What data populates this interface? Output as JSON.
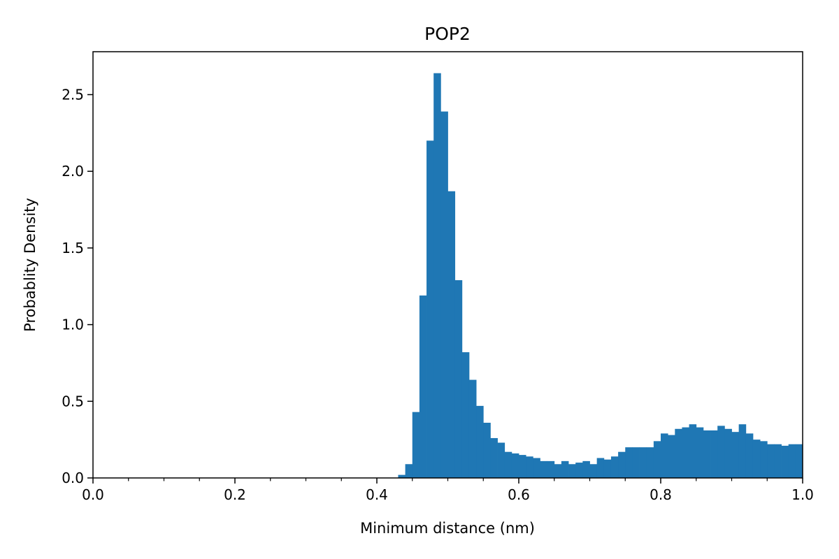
{
  "chart_data": {
    "type": "bar",
    "title": "POP2",
    "xlabel": "Minimum distance (nm)",
    "ylabel": "Probablity Density",
    "xlim": [
      0.0,
      1.0
    ],
    "ylim": [
      0.0,
      2.78
    ],
    "grid": false,
    "bar_color": "#1f77b4",
    "x_ticks": [
      0.0,
      0.2,
      0.4,
      0.6,
      0.8,
      1.0
    ],
    "x_tick_labels": [
      "0.0",
      "0.2",
      "0.4",
      "0.6",
      "0.8",
      "1.0"
    ],
    "x_minor_ticks": [
      0.05,
      0.1,
      0.15,
      0.25,
      0.3,
      0.35,
      0.45,
      0.5,
      0.55,
      0.65,
      0.7,
      0.75,
      0.85,
      0.9,
      0.95
    ],
    "y_ticks": [
      0.0,
      0.5,
      1.0,
      1.5,
      2.0,
      2.5
    ],
    "y_tick_labels": [
      "0.0",
      "0.5",
      "1.0",
      "1.5",
      "2.0",
      "2.5"
    ],
    "bin_width": 0.01,
    "bin_starts": [
      0.43,
      0.44,
      0.45,
      0.46,
      0.47,
      0.48,
      0.49,
      0.5,
      0.51,
      0.52,
      0.53,
      0.54,
      0.55,
      0.56,
      0.57,
      0.58,
      0.59,
      0.6,
      0.61,
      0.62,
      0.63,
      0.64,
      0.65,
      0.66,
      0.67,
      0.68,
      0.69,
      0.7,
      0.71,
      0.72,
      0.73,
      0.74,
      0.75,
      0.76,
      0.77,
      0.78,
      0.79,
      0.8,
      0.81,
      0.82,
      0.83,
      0.84,
      0.85,
      0.86,
      0.87,
      0.88,
      0.89,
      0.9,
      0.91,
      0.92,
      0.93,
      0.94,
      0.95,
      0.96,
      0.97,
      0.98,
      0.99
    ],
    "values": [
      0.02,
      0.09,
      0.43,
      1.19,
      2.2,
      2.64,
      2.39,
      1.87,
      1.29,
      0.82,
      0.64,
      0.47,
      0.36,
      0.26,
      0.23,
      0.17,
      0.16,
      0.15,
      0.14,
      0.13,
      0.11,
      0.11,
      0.09,
      0.11,
      0.09,
      0.1,
      0.11,
      0.09,
      0.13,
      0.12,
      0.14,
      0.17,
      0.2,
      0.2,
      0.2,
      0.2,
      0.24,
      0.29,
      0.28,
      0.32,
      0.33,
      0.35,
      0.33,
      0.31,
      0.31,
      0.34,
      0.32,
      0.3,
      0.35,
      0.29,
      0.25,
      0.24,
      0.22,
      0.22,
      0.21,
      0.22,
      0.22
    ]
  }
}
